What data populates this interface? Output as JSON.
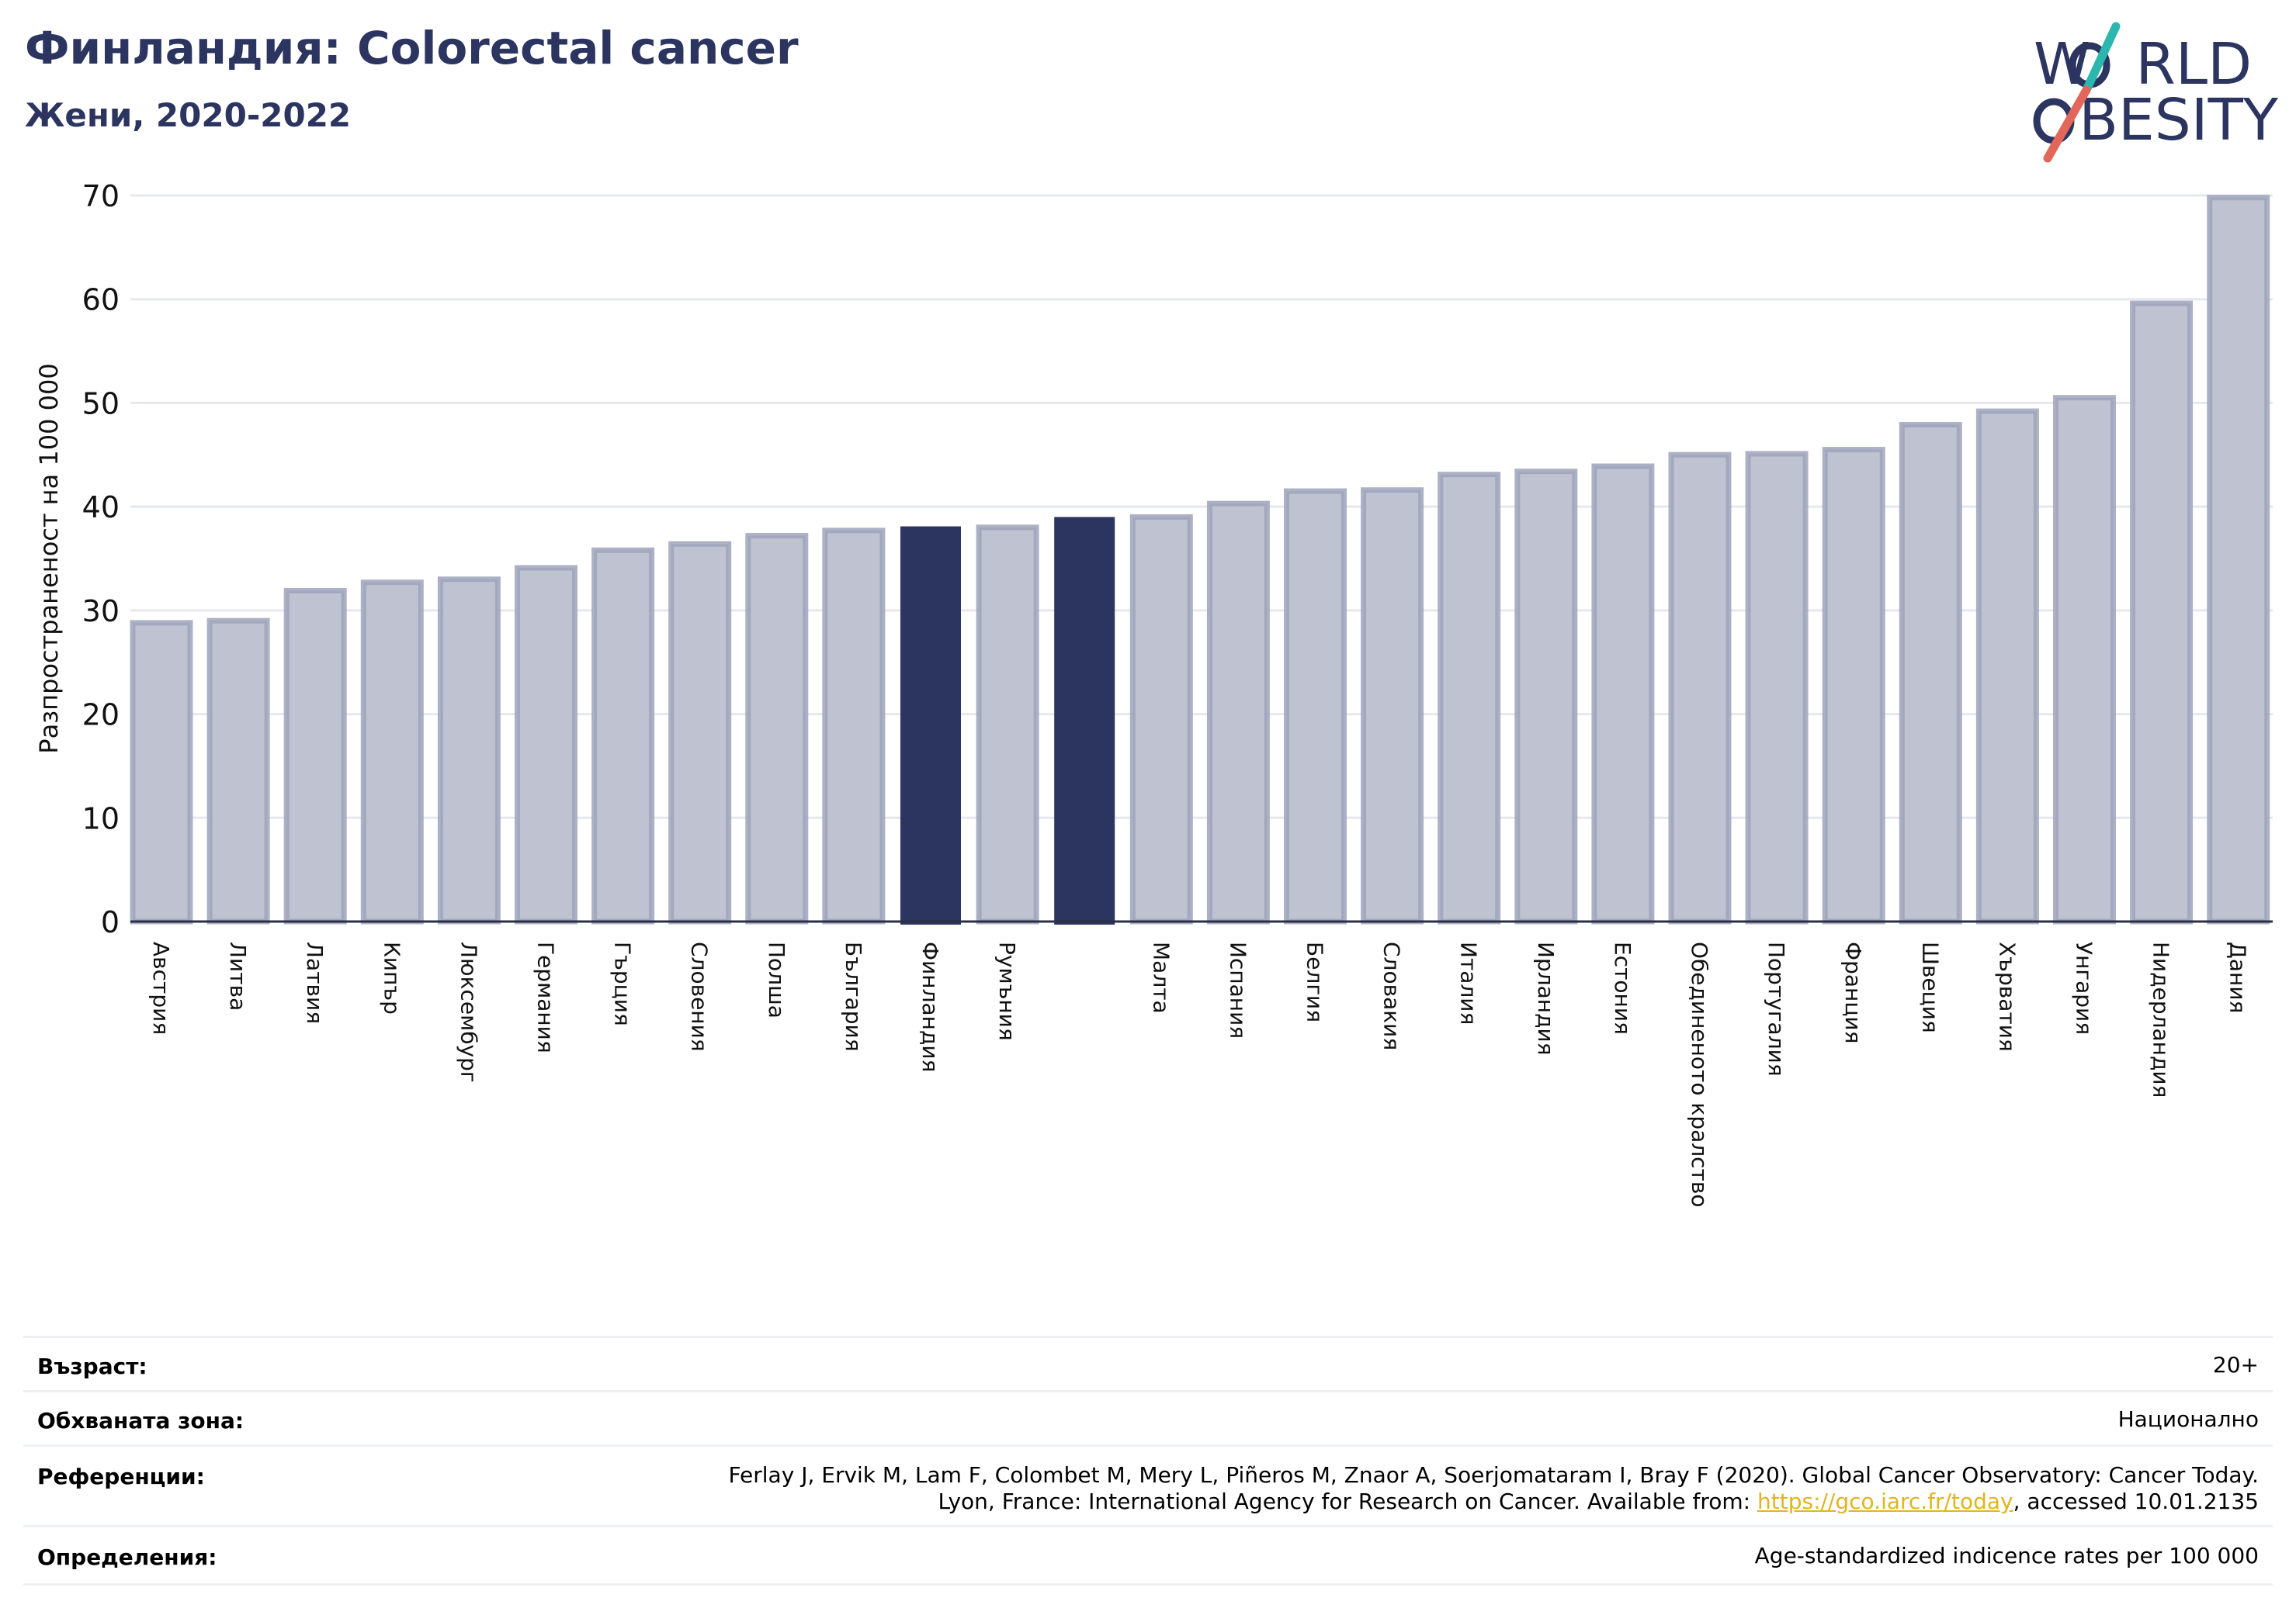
{
  "header": {
    "title": "Финландия: Colorectal cancer",
    "subtitle": "Жени, 2020-2022"
  },
  "logo": {
    "line1": "WORLD",
    "line2": "OBESITY",
    "line1_html": "W%RLD",
    "line2_html": "%BESITY"
  },
  "colors": {
    "highlight": "#2b3560",
    "bar_fill": "#bfc2d0",
    "bar_edge": "#9ea3bb",
    "slash_teal": "#2bb6ae",
    "slash_red": "#e2665a",
    "link": "#e2b420"
  },
  "chart_data": {
    "type": "bar",
    "ylabel": "Разпространеност  на 100 000",
    "xlabel": "",
    "ylim": [
      0,
      70
    ],
    "yticks": [
      0,
      10,
      20,
      30,
      40,
      50,
      60,
      70
    ],
    "grid": true,
    "categories": [
      "Австрия",
      "Литва",
      "Латвия",
      "Кипър",
      "Люксембург",
      "Германия",
      "Гърция",
      "Словения",
      "Полша",
      "България",
      "Финландия",
      "Румъния",
      "",
      "Малта",
      "Испания",
      "Белгия",
      "Словакия",
      "Италия",
      "Ирландия",
      "Естония",
      "Обединеното кралство",
      "Португалия",
      "Франция",
      "Швеция",
      "Хърватия",
      "Унгария",
      "Нидерландия",
      "Дания"
    ],
    "values": [
      28.8,
      29.0,
      31.9,
      32.7,
      33.0,
      34.1,
      35.8,
      36.4,
      37.2,
      37.7,
      38.1,
      38.0,
      39.0,
      39.0,
      40.3,
      41.5,
      41.6,
      43.1,
      43.4,
      43.9,
      45.0,
      45.1,
      45.5,
      47.9,
      49.2,
      50.5,
      59.6,
      69.8
    ],
    "highlighted": [
      10,
      12
    ]
  },
  "meta": {
    "age_label": "Възраст:",
    "age_value": "20+",
    "zone_label": "Обхваната зона:",
    "zone_value": "Национално",
    "refs_label": "Референции:",
    "refs_line1": "Ferlay J, Ervik M, Lam F, Colombet M, Mery L, Piñeros M, Znaor A, Soerjomataram I, Bray F (2020). Global Cancer Observatory: Cancer Today.",
    "refs_line2_pre": "Lyon, France: International Agency for Research on Cancer. Available from: ",
    "refs_link": "https://gco.iarc.fr/today",
    "refs_line2_post": ", accessed 10.01.2135",
    "defs_label": "Определения:",
    "defs_value": "Age-standardized indicence rates per 100 000"
  }
}
